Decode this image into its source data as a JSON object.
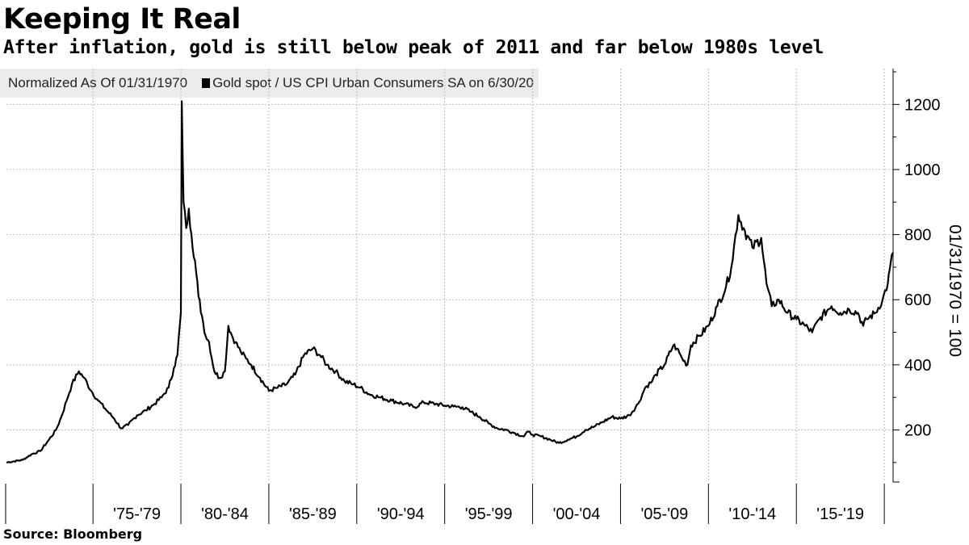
{
  "header": {
    "title": "Keeping It Real",
    "subtitle": "After inflation, gold is still below peak of 2011 and far below 1980s level"
  },
  "legend": {
    "note": "Normalized As Of 01/31/1970",
    "series_label": "Gold spot / US CPI Urban Consumers SA on 6/30/20"
  },
  "footer": {
    "source": "Source: Bloomberg"
  },
  "colors": {
    "line": "#000000",
    "grid": "#bdbdbd",
    "legend_bg": "#ececec"
  },
  "chart_data": {
    "type": "line",
    "title": "Keeping It Real",
    "ylabel": "01/31/1970 = 100",
    "xlabel": "",
    "xlim": [
      1970.08,
      2020.5
    ],
    "ylim": [
      40,
      1310
    ],
    "yticks": [
      200,
      400,
      600,
      800,
      1000,
      1200
    ],
    "x_periods": [
      "'75-'79",
      "'80-'84",
      "'85-'89",
      "'90-'94",
      "'95-'99",
      "'00-'04",
      "'05-'09",
      "'10-'14",
      "'15-'19"
    ],
    "x_period_boundaries": [
      1975,
      1980,
      1985,
      1990,
      1995,
      2000,
      2005,
      2010,
      2015,
      2020
    ],
    "grid": true,
    "series": [
      {
        "name": "Gold spot / US CPI Urban Consumers SA",
        "x": [
          1970.08,
          1971.0,
          1971.5,
          1972.0,
          1972.5,
          1972.9,
          1973.2,
          1973.5,
          1973.8,
          1974.2,
          1974.5,
          1974.9,
          1975.3,
          1975.7,
          1976.2,
          1976.6,
          1977.0,
          1977.5,
          1978.0,
          1978.5,
          1978.9,
          1979.3,
          1979.6,
          1979.8,
          1980.0,
          1980.05,
          1980.15,
          1980.3,
          1980.45,
          1980.6,
          1980.8,
          1981.0,
          1981.2,
          1981.4,
          1981.6,
          1981.9,
          1982.2,
          1982.5,
          1982.7,
          1982.9,
          1983.1,
          1983.4,
          1983.7,
          1984.0,
          1984.5,
          1985.0,
          1985.5,
          1986.0,
          1986.5,
          1987.0,
          1987.5,
          1987.9,
          1988.3,
          1988.8,
          1989.3,
          1989.8,
          1990.2,
          1990.7,
          1991.3,
          1992.0,
          1992.7,
          1993.3,
          1993.8,
          1994.5,
          1995.0,
          1995.5,
          1996.0,
          1996.5,
          1997.0,
          1997.5,
          1998.0,
          1998.5,
          1999.0,
          1999.5,
          1999.75,
          2000.0,
          2000.5,
          2001.0,
          2001.5,
          2002.0,
          2002.5,
          2003.0,
          2003.5,
          2004.0,
          2004.5,
          2005.0,
          2005.5,
          2006.0,
          2006.4,
          2006.8,
          2007.0,
          2007.5,
          2008.0,
          2008.2,
          2008.5,
          2008.8,
          2009.0,
          2009.5,
          2010.0,
          2010.5,
          2011.0,
          2011.3,
          2011.7,
          2012.0,
          2012.5,
          2013.0,
          2013.3,
          2013.6,
          2014.0,
          2014.5,
          2015.0,
          2015.5,
          2015.9,
          2016.3,
          2016.8,
          2017.0,
          2017.5,
          2018.0,
          2018.5,
          2018.8,
          2019.0,
          2019.5,
          2019.9,
          2020.2,
          2020.3,
          2020.5
        ],
        "values": [
          100,
          108,
          125,
          135,
          170,
          200,
          240,
          290,
          340,
          380,
          360,
          320,
          290,
          265,
          235,
          205,
          215,
          245,
          260,
          280,
          300,
          330,
          390,
          430,
          560,
          1210,
          900,
          820,
          880,
          800,
          720,
          610,
          550,
          490,
          470,
          380,
          360,
          380,
          520,
          490,
          470,
          440,
          420,
          400,
          360,
          320,
          330,
          340,
          370,
          430,
          450,
          430,
          400,
          380,
          350,
          340,
          330,
          310,
          300,
          290,
          280,
          270,
          285,
          280,
          275,
          272,
          270,
          255,
          240,
          220,
          205,
          200,
          190,
          180,
          195,
          185,
          180,
          170,
          160,
          170,
          180,
          200,
          210,
          225,
          240,
          235,
          245,
          280,
          330,
          350,
          370,
          400,
          460,
          450,
          420,
          400,
          460,
          490,
          520,
          580,
          640,
          700,
          860,
          820,
          760,
          790,
          650,
          580,
          600,
          560,
          540,
          520,
          500,
          540,
          570,
          580,
          560,
          570,
          560,
          520,
          540,
          560,
          600,
          650,
          690,
          745
        ]
      }
    ]
  }
}
